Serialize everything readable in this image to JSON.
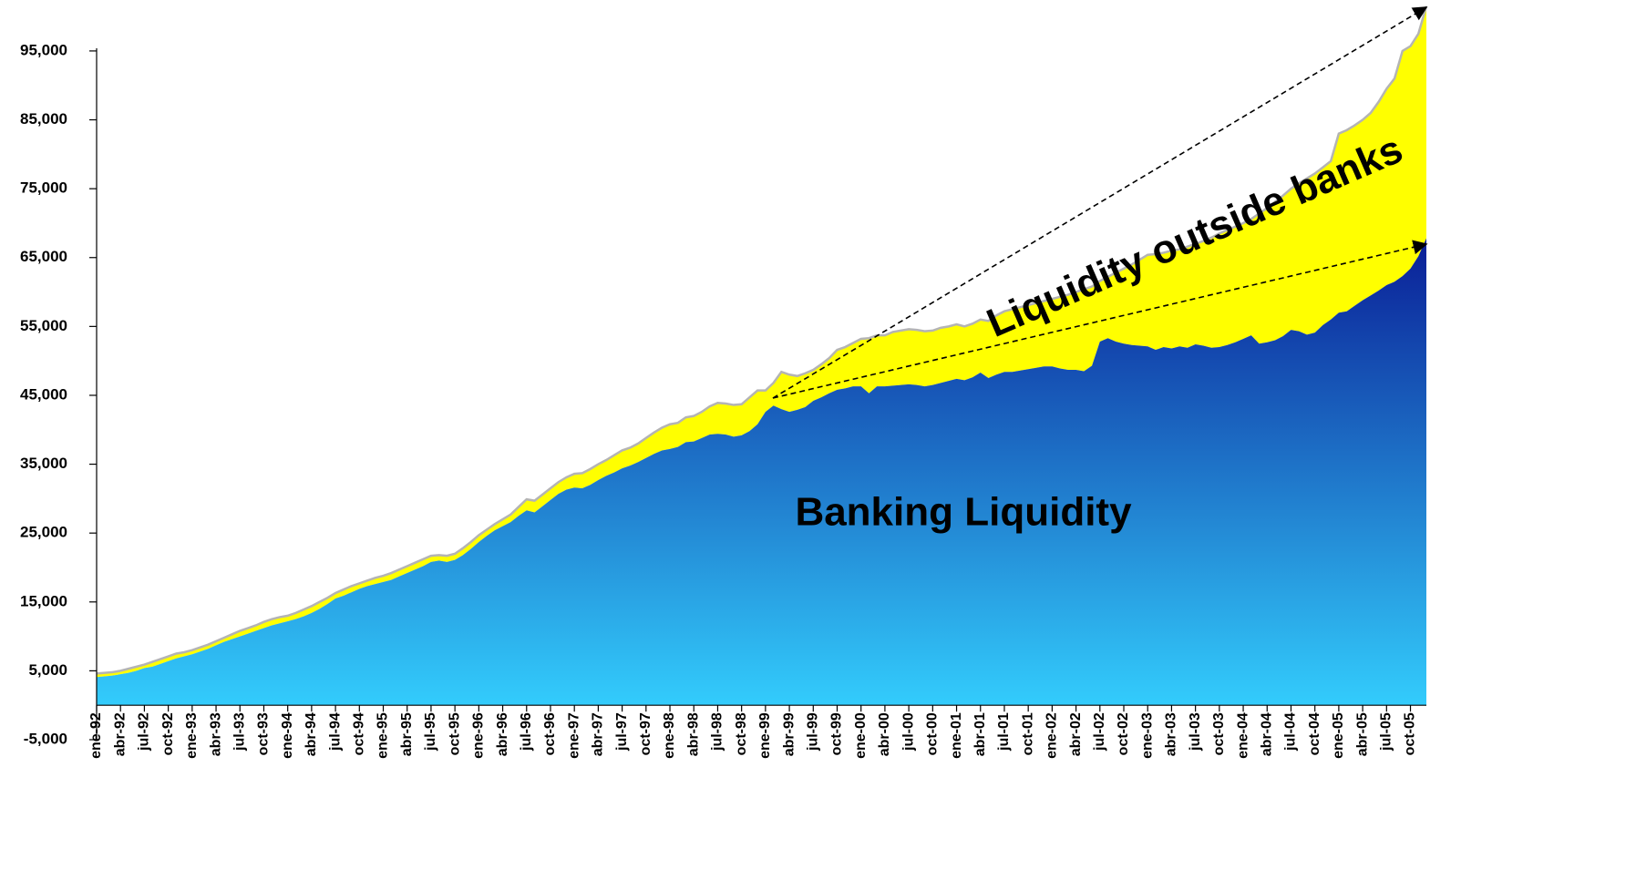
{
  "chart_data": {
    "type": "stacked_area",
    "annotations": [
      "Banking Liquidity",
      "Liquidity outside banks"
    ],
    "categories": [
      "ene-92",
      null,
      null,
      "abr-92",
      null,
      null,
      "jul-92",
      null,
      null,
      "oct-92",
      null,
      null,
      "ene-93",
      null,
      null,
      "abr-93",
      null,
      null,
      "jul-93",
      null,
      null,
      "oct-93",
      null,
      null,
      "ene-94",
      null,
      null,
      "abr-94",
      null,
      null,
      "jul-94",
      null,
      null,
      "oct-94",
      null,
      null,
      "ene-95",
      null,
      null,
      "abr-95",
      null,
      null,
      "jul-95",
      null,
      null,
      "oct-95",
      null,
      null,
      "ene-96",
      null,
      null,
      "abr-96",
      null,
      null,
      "jul-96",
      null,
      null,
      "oct-96",
      null,
      null,
      "ene-97",
      null,
      null,
      "abr-97",
      null,
      null,
      "jul-97",
      null,
      null,
      "oct-97",
      null,
      null,
      "ene-98",
      null,
      null,
      "abr-98",
      null,
      null,
      "jul-98",
      null,
      null,
      "oct-98",
      null,
      null,
      "ene-99",
      null,
      null,
      "abr-99",
      null,
      null,
      "jul-99",
      null,
      null,
      "oct-99",
      null,
      null,
      "ene-00",
      null,
      null,
      "abr-00",
      null,
      null,
      "jul-00",
      null,
      null,
      "oct-00",
      null,
      null,
      "ene-01",
      null,
      null,
      "abr-01",
      null,
      null,
      "jul-01",
      null,
      null,
      "oct-01",
      null,
      null,
      "ene-02",
      null,
      null,
      "abr-02",
      null,
      null,
      "jul-02",
      null,
      null,
      "oct-02",
      null,
      null,
      "ene-03",
      null,
      null,
      "abr-03",
      null,
      null,
      "jul-03",
      null,
      null,
      "oct-03",
      null,
      null,
      "ene-04",
      null,
      null,
      "abr-04",
      null,
      null,
      "jul-04",
      null,
      null,
      "oct-04",
      null,
      null,
      "ene-05",
      null,
      null,
      "abr-05",
      null,
      null,
      "jul-05",
      null,
      null,
      "oct-05",
      null,
      null
    ],
    "series": [
      {
        "name": "Banking Liquidity",
        "color": [
          "#33ccfc",
          "#0a1e96"
        ],
        "values": [
          4100,
          4200,
          4300,
          4500,
          4700,
          5000,
          5400,
          5600,
          6000,
          6400,
          6800,
          7100,
          7400,
          7800,
          8200,
          8700,
          9200,
          9600,
          10000,
          10400,
          10800,
          11200,
          11600,
          11900,
          12200,
          12500,
          12900,
          13400,
          14000,
          14700,
          15500,
          15900,
          16400,
          16900,
          17300,
          17600,
          17900,
          18200,
          18700,
          19200,
          19700,
          20200,
          20800,
          21000,
          20800,
          21100,
          21800,
          22700,
          23700,
          24600,
          25400,
          26000,
          26600,
          27500,
          28300,
          28000,
          28900,
          29800,
          30700,
          31300,
          31600,
          31500,
          32000,
          32700,
          33300,
          33800,
          34400,
          34800,
          35300,
          35900,
          36500,
          37000,
          37200,
          37500,
          38200,
          38300,
          38800,
          39300,
          39400,
          39300,
          39000,
          39200,
          39800,
          40800,
          42600,
          43500,
          43000,
          42600,
          42900,
          43300,
          44200,
          44700,
          45300,
          45800,
          46000,
          46300,
          46300,
          45300,
          46300,
          46300,
          46400,
          46500,
          46600,
          46500,
          46300,
          46500,
          46800,
          47100,
          47400,
          47200,
          47600,
          48300,
          47500,
          48000,
          48400,
          48400,
          48600,
          48800,
          49000,
          49200,
          49200,
          48900,
          48700,
          48700,
          48500,
          49300,
          52800,
          53300,
          52800,
          52500,
          52300,
          52200,
          52100,
          51600,
          52000,
          51800,
          52100,
          51900,
          52400,
          52200,
          51900,
          52000,
          52300,
          52700,
          53200,
          53700,
          52500,
          52700,
          53000,
          53600,
          54500,
          54300,
          53800,
          54100,
          55200,
          56000,
          57000,
          57200,
          58000,
          58800,
          59500,
          60200,
          61000,
          61500,
          62300,
          63400,
          65200,
          67800
        ]
      },
      {
        "name": "Liquidity outside banks",
        "color": "#ffff00",
        "line_color": "#b4b4b4",
        "values": [
          500,
          500,
          500,
          500,
          600,
          600,
          500,
          700,
          700,
          700,
          700,
          600,
          600,
          600,
          600,
          600,
          600,
          700,
          800,
          800,
          800,
          900,
          900,
          900,
          800,
          900,
          1000,
          1000,
          1000,
          900,
          800,
          900,
          900,
          800,
          800,
          900,
          900,
          1000,
          1000,
          1000,
          1000,
          1000,
          900,
          800,
          900,
          900,
          1000,
          1000,
          1000,
          900,
          900,
          1000,
          1100,
          1300,
          1600,
          1700,
          1700,
          1700,
          1700,
          1800,
          2000,
          2200,
          2300,
          2300,
          2300,
          2500,
          2600,
          2600,
          2700,
          2900,
          3100,
          3300,
          3600,
          3500,
          3600,
          3700,
          3800,
          4100,
          4500,
          4500,
          4600,
          4500,
          4900,
          4900,
          3100,
          3300,
          5400,
          5400,
          4900,
          4900,
          4500,
          4800,
          5100,
          5800,
          6000,
          6300,
          6900,
          8000,
          7400,
          7400,
          7800,
          7900,
          8000,
          8000,
          8000,
          7900,
          8000,
          7900,
          7900,
          7800,
          7800,
          7700,
          8300,
          8600,
          8800,
          9100,
          9200,
          9300,
          9400,
          9500,
          9800,
          10400,
          10900,
          11300,
          11900,
          11500,
          8800,
          8900,
          10000,
          10900,
          11700,
          12500,
          13300,
          13900,
          13700,
          14200,
          14100,
          14700,
          14600,
          15200,
          16000,
          16500,
          16700,
          16800,
          16800,
          16900,
          18900,
          19500,
          20100,
          20400,
          20500,
          21500,
          22700,
          23100,
          22900,
          23000,
          26000,
          26300,
          26200,
          26200,
          26500,
          27400,
          28500,
          29500,
          32700,
          32300,
          32300,
          33700
        ]
      }
    ],
    "ylim": [
      -5000,
      102000
    ],
    "yticks": [
      {
        "value": -5000,
        "label": "-5,000"
      },
      {
        "value": 5000,
        "label": "5,000"
      },
      {
        "value": 15000,
        "label": "15,000"
      },
      {
        "value": 25000,
        "label": "25,000"
      },
      {
        "value": 35000,
        "label": "35,000"
      },
      {
        "value": 45000,
        "label": "45,000"
      },
      {
        "value": 55000,
        "label": "55,000"
      },
      {
        "value": 65000,
        "label": "65,000"
      },
      {
        "value": 75000,
        "label": "75,000"
      },
      {
        "value": 85000,
        "label": "85,000"
      },
      {
        "value": 95000,
        "label": "95,000"
      }
    ],
    "grid": false
  }
}
